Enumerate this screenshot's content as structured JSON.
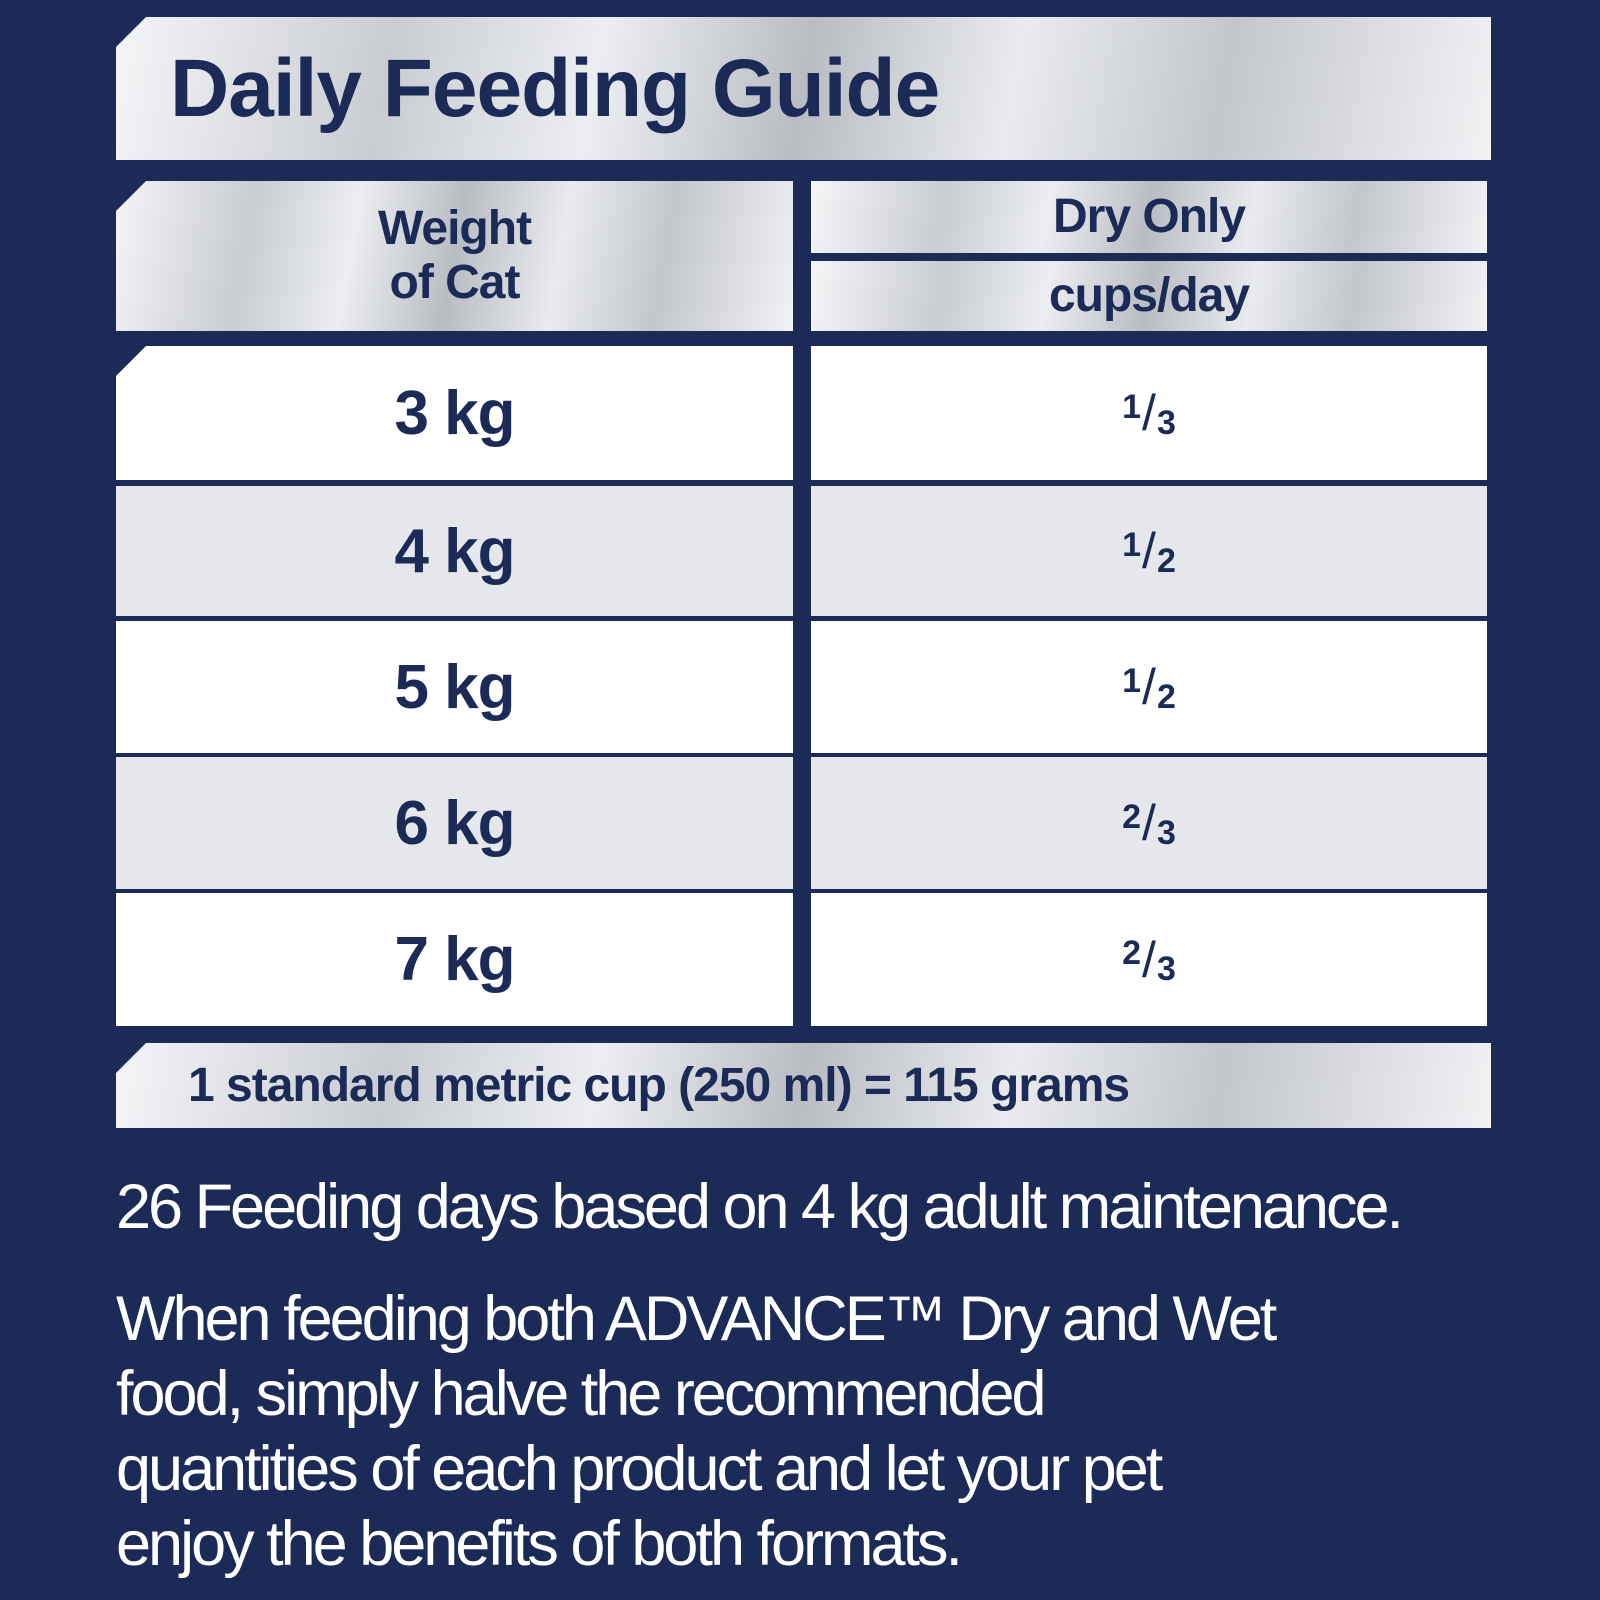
{
  "title": "Daily Feeding Guide",
  "table": {
    "col1_header": [
      "Weight",
      "of Cat"
    ],
    "col2_header": "Dry Only",
    "col2_subheader": "cups/day",
    "rows": [
      {
        "weight": "3 kg",
        "num": "1",
        "den": "3"
      },
      {
        "weight": "4 kg",
        "num": "1",
        "den": "2"
      },
      {
        "weight": "5 kg",
        "num": "1",
        "den": "2"
      },
      {
        "weight": "6 kg",
        "num": "2",
        "den": "3"
      },
      {
        "weight": "7 kg",
        "num": "2",
        "den": "3"
      }
    ]
  },
  "footnote": "1 standard metric cup (250 ml) = 115 grams",
  "feeding_days": "26 Feeding days based on 4 kg adult maintenance.",
  "instructions": [
    "When feeding both ADVANCE™ Dry and Wet",
    "food, simply halve the recommended",
    "quantities of each product and let your pet",
    "enjoy the benefits of both formats."
  ],
  "colors": {
    "background": "#1c2a57",
    "text": "#1c2a57",
    "row_alt": "#e5e7eb"
  }
}
